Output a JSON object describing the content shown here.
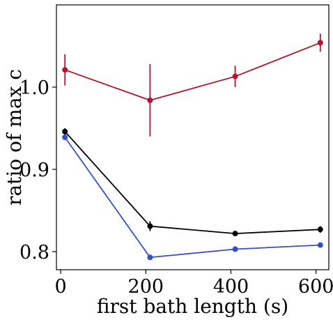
{
  "chart_data": {
    "type": "line",
    "title": "",
    "xlabel": "first bath length (s)",
    "ylabel": "ratio of max c",
    "xlim": [
      -10,
      630
    ],
    "ylim": [
      0.778,
      1.1
    ],
    "xticks": [
      0,
      200,
      400,
      600
    ],
    "xtick_labels": [
      "0",
      "200",
      "400",
      "600"
    ],
    "yticks": [
      0.8,
      0.9,
      1.0
    ],
    "ytick_labels": [
      "0.8",
      "0.9",
      "1.0"
    ],
    "grid": false,
    "legend": "none",
    "series": [
      {
        "color": "#b5122f",
        "x": [
          10,
          210,
          410,
          610
        ],
        "y": [
          1.021,
          0.984,
          1.013,
          1.054
        ],
        "err": [
          0.019,
          0.044,
          0.013,
          0.011
        ]
      },
      {
        "color": "#000000",
        "x": [
          10,
          210,
          410,
          610
        ],
        "y": [
          0.946,
          0.831,
          0.822,
          0.827
        ],
        "err": [
          0.004,
          0.006,
          0.002,
          0.004
        ]
      },
      {
        "color": "#3a4fbf",
        "x": [
          10,
          210,
          410,
          610
        ],
        "y": [
          0.939,
          0.793,
          0.803,
          0.808
        ],
        "err": [
          0.003,
          0.002,
          0.002,
          0.002
        ]
      }
    ]
  }
}
